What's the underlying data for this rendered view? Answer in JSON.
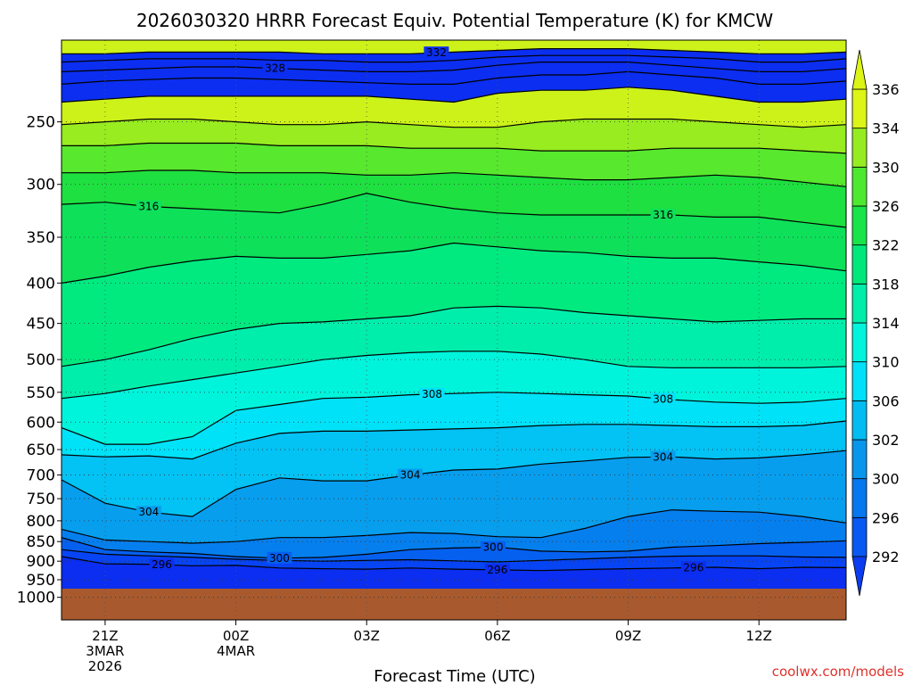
{
  "chart_data": {
    "type": "contour",
    "title": "2026030320 HRRR Forecast Equiv. Potential Temperature (K) for KMCW",
    "xlabel": "Forecast Time (UTC)",
    "ylabel": "",
    "credit": "coolwx.com/models",
    "x_ticks": [
      {
        "id": "21z",
        "time": 0,
        "lines": [
          "21Z",
          "3MAR",
          "2026"
        ]
      },
      {
        "id": "00z",
        "time": 3,
        "lines": [
          "00Z",
          "4MAR"
        ]
      },
      {
        "id": "03z",
        "time": 6,
        "lines": [
          "03Z"
        ]
      },
      {
        "id": "06z",
        "time": 9,
        "lines": [
          "06Z"
        ]
      },
      {
        "id": "09z",
        "time": 12,
        "lines": [
          "09Z"
        ]
      },
      {
        "id": "12z",
        "time": 15,
        "lines": [
          "12Z"
        ]
      }
    ],
    "xlim": [
      -1,
      17
    ],
    "y_ticks": [
      250,
      300,
      350,
      400,
      450,
      500,
      550,
      600,
      650,
      700,
      750,
      800,
      850,
      900,
      950,
      1000
    ],
    "ylim": [
      1000,
      200
    ],
    "yscale": "log",
    "colorbar": {
      "labels": [
        292,
        296,
        300,
        302,
        306,
        310,
        314,
        318,
        322,
        326,
        330,
        334,
        336
      ],
      "colors": [
        "#0b3cf0",
        "#0a58f2",
        "#0677ee",
        "#0796ec",
        "#02bcf2",
        "#00e0f8",
        "#00f4dc",
        "#00eeaa",
        "#00e87a",
        "#19e44a",
        "#4de830",
        "#96ec22",
        "#dcf416"
      ],
      "extend": "both"
    },
    "fill_colors": [
      "#0b2ef0",
      "#0744f4",
      "#0560f0",
      "#067fee",
      "#079eee",
      "#03c2f4",
      "#00e2f8",
      "#00f4dc",
      "#00eeac",
      "#00ea80",
      "#0ee05a",
      "#1ee040",
      "#58e82e",
      "#98ec20",
      "#cdf21a"
    ],
    "contours": [
      {
        "id": "t296",
        "value": 296,
        "label": "296",
        "y_p": [
          888,
          907,
          908,
          912,
          911,
          918,
          920,
          921,
          918,
          921,
          923,
          925,
          922,
          920,
          918,
          916,
          920,
          916,
          917
        ],
        "label_positions": [
          {
            "t": 1.3
          },
          {
            "t": 9
          },
          {
            "t": 13.5
          }
        ]
      },
      {
        "id": "t298",
        "value": 298,
        "label": "",
        "y_p": [
          870,
          882,
          886,
          890,
          895,
          898,
          900,
          898,
          896,
          899,
          902,
          898,
          894,
          890,
          887,
          886,
          886,
          889,
          890
        ]
      },
      {
        "id": "t300",
        "value": 300,
        "label": "300",
        "y_p": [
          840,
          870,
          876,
          880,
          888,
          892,
          890,
          882,
          870,
          866,
          864,
          874,
          876,
          874,
          864,
          860,
          855,
          852,
          848
        ],
        "label_positions": [
          {
            "t": 4
          },
          {
            "t": 8.9
          }
        ]
      },
      {
        "id": "t302",
        "value": 302,
        "label": "",
        "y_p": [
          820,
          846,
          850,
          854,
          850,
          840,
          840,
          835,
          828,
          830,
          838,
          840,
          818,
          790,
          775,
          778,
          780,
          790,
          805
        ]
      },
      {
        "id": "t304",
        "value": 304,
        "label": "304",
        "y_p": [
          710,
          760,
          780,
          790,
          730,
          706,
          712,
          712,
          700,
          690,
          688,
          678,
          672,
          665,
          664,
          668,
          666,
          660,
          652
        ],
        "label_positions": [
          {
            "t": 1
          },
          {
            "t": 7
          },
          {
            "t": 12.8
          }
        ]
      },
      {
        "id": "t306",
        "value": 306,
        "label": "",
        "y_p": [
          660,
          664,
          662,
          668,
          638,
          620,
          616,
          616,
          614,
          612,
          610,
          606,
          604,
          604,
          606,
          608,
          608,
          606,
          598
        ]
      },
      {
        "id": "t308",
        "value": 308,
        "label": "308",
        "y_p": [
          610,
          640,
          640,
          626,
          580,
          570,
          560,
          558,
          554,
          552,
          550,
          552,
          554,
          556,
          562,
          566,
          568,
          566,
          560
        ],
        "label_positions": [
          {
            "t": 7.5
          },
          {
            "t": 12.8
          }
        ]
      },
      {
        "id": "t310",
        "value": 310,
        "label": "",
        "y_p": [
          560,
          552,
          540,
          530,
          520,
          510,
          500,
          494,
          490,
          488,
          488,
          492,
          500,
          510,
          512,
          512,
          512,
          512,
          510
        ]
      },
      {
        "id": "t312",
        "value": 312,
        "label": "",
        "y_p": [
          510,
          500,
          486,
          470,
          458,
          450,
          448,
          444,
          440,
          430,
          428,
          430,
          436,
          440,
          444,
          448,
          446,
          444,
          444
        ]
      },
      {
        "id": "t314",
        "value": 314,
        "label": "",
        "y_p": [
          400,
          392,
          382,
          375,
          370,
          372,
          372,
          368,
          364,
          356,
          360,
          364,
          366,
          370,
          372,
          372,
          376,
          380,
          386
        ]
      },
      {
        "id": "t316",
        "value": 316,
        "label": "316",
        "y_p": [
          318,
          316,
          320,
          322,
          324,
          326,
          318,
          308,
          316,
          322,
          326,
          328,
          328,
          328,
          328,
          330,
          330,
          335,
          340
        ],
        "label_positions": [
          {
            "t": 1
          },
          {
            "t": 12.8
          }
        ]
      },
      {
        "id": "t318",
        "value": 318,
        "label": "",
        "y_p": [
          290,
          290,
          288,
          288,
          290,
          290,
          290,
          292,
          292,
          290,
          292,
          294,
          296,
          296,
          294,
          292,
          294,
          298,
          302
        ]
      },
      {
        "id": "t320",
        "value": 320,
        "label": "",
        "y_p": [
          268,
          268,
          266,
          266,
          266,
          268,
          268,
          268,
          270,
          270,
          270,
          272,
          272,
          272,
          270,
          270,
          270,
          272,
          274
        ]
      },
      {
        "id": "t322",
        "value": 322,
        "label": "",
        "y_p": [
          252,
          250,
          248,
          248,
          250,
          252,
          252,
          250,
          252,
          254,
          254,
          250,
          248,
          248,
          248,
          250,
          252,
          254,
          252
        ]
      },
      {
        "id": "t324",
        "value": 324,
        "label": "",
        "y_p": [
          236,
          234,
          232,
          232,
          232,
          232,
          232,
          232,
          234,
          236,
          230,
          228,
          228,
          226,
          228,
          232,
          236,
          236,
          234
        ]
      },
      {
        "id": "t326",
        "value": 326,
        "label": "",
        "y_p": [
          224,
          222,
          221,
          220,
          220,
          221,
          222,
          223,
          224,
          224,
          220,
          218,
          218,
          216,
          218,
          220,
          224,
          224,
          222
        ]
      },
      {
        "id": "t328",
        "value": 328,
        "label": "328",
        "y_p": [
          216,
          215,
          214,
          213,
          213,
          214,
          215,
          216,
          216,
          215,
          212,
          210,
          210,
          210,
          212,
          214,
          216,
          216,
          214
        ],
        "label_positions": [
          {
            "t": 3.9
          }
        ]
      },
      {
        "id": "t330",
        "value": 330,
        "label": "",
        "y_p": [
          210,
          209,
          208,
          208,
          208,
          209,
          209,
          210,
          210,
          209,
          207,
          206,
          206,
          206,
          207,
          208,
          210,
          210,
          208
        ]
      },
      {
        "id": "t332",
        "value": 332,
        "label": "332",
        "y_p": [
          205,
          205,
          204,
          204,
          204,
          204,
          205,
          205,
          205,
          204,
          203,
          202,
          202,
          202,
          203,
          204,
          205,
          205,
          204
        ],
        "label_positions": [
          {
            "t": 7.6
          }
        ]
      }
    ],
    "contour_color": "#000000",
    "ground": {
      "color": "#a85a2e"
    },
    "grid": true,
    "colorbar_position": "right"
  }
}
